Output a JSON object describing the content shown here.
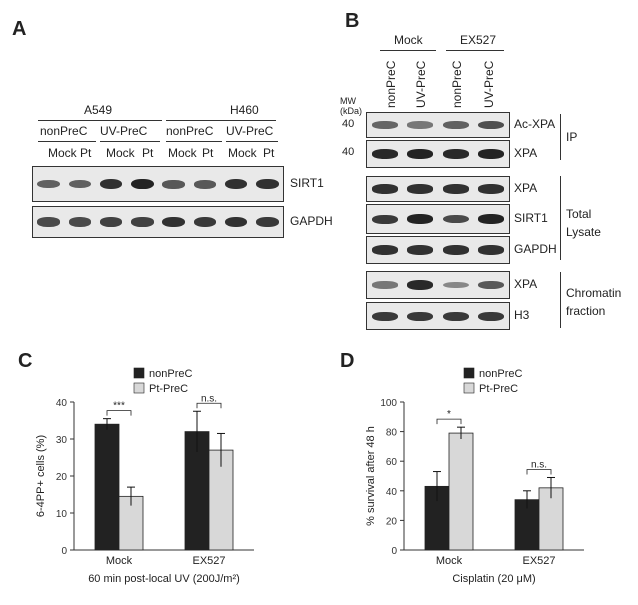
{
  "panelA": {
    "letter": "A",
    "cell_lines": [
      "A549",
      "H460"
    ],
    "groups": [
      "nonPreC",
      "UV-PreC",
      "nonPreC",
      "UV-PreC"
    ],
    "treatments": [
      "Mock",
      "Pt",
      "Mock",
      "Pt",
      "Mock",
      "Pt",
      "Mock",
      "Pt"
    ],
    "rows": [
      {
        "label": "SIRT1",
        "intensity": [
          0.55,
          0.55,
          0.85,
          0.95,
          0.6,
          0.6,
          0.85,
          0.85
        ]
      },
      {
        "label": "GAPDH",
        "intensity": [
          0.7,
          0.7,
          0.75,
          0.75,
          0.85,
          0.8,
          0.85,
          0.8
        ]
      }
    ]
  },
  "panelB": {
    "letter": "B",
    "groups": [
      "Mock",
      "EX527"
    ],
    "lanes": [
      "nonPreC",
      "UV-PreC",
      "nonPreC",
      "UV-PreC"
    ],
    "mw_label": "MW\n(kDa)",
    "mw_marks": [
      "40",
      "40"
    ],
    "rows": [
      {
        "label": "Ac-XPA",
        "intensity": [
          0.5,
          0.4,
          0.55,
          0.65
        ]
      },
      {
        "label": "XPA",
        "intensity": [
          0.9,
          0.95,
          0.9,
          0.95
        ]
      },
      {
        "label": "XPA",
        "intensity": [
          0.85,
          0.85,
          0.85,
          0.85
        ]
      },
      {
        "label": "SIRT1",
        "intensity": [
          0.8,
          0.95,
          0.7,
          0.95
        ]
      },
      {
        "label": "GAPDH",
        "intensity": [
          0.85,
          0.85,
          0.85,
          0.85
        ]
      },
      {
        "label": "XPA",
        "intensity": [
          0.4,
          0.9,
          0.3,
          0.6
        ]
      },
      {
        "label": "H3",
        "intensity": [
          0.8,
          0.8,
          0.8,
          0.8
        ]
      }
    ],
    "brackets": [
      "IP",
      "Total Lysate",
      "Chromatin fraction"
    ]
  },
  "chart_data": [
    {
      "type": "bar",
      "panel": "C",
      "categories": [
        "Mock",
        "EX527"
      ],
      "series": [
        {
          "name": "nonPreC",
          "values": [
            34,
            32
          ],
          "errors": [
            1.5,
            5.5
          ],
          "color": "#222222"
        },
        {
          "name": "Pt-PreC",
          "values": [
            14.5,
            27
          ],
          "errors": [
            2.5,
            4.5
          ],
          "color": "#d8d8d8"
        }
      ],
      "significance": [
        "***",
        "n.s."
      ],
      "ylabel": "6-4PP+ cells (%)",
      "xlabel": "60 min post-local UV (200J/m²)",
      "ylim": [
        0,
        40
      ],
      "yticks": [
        0,
        10,
        20,
        30,
        40
      ],
      "legend": "top"
    },
    {
      "type": "bar",
      "panel": "D",
      "categories": [
        "Mock",
        "EX527"
      ],
      "series": [
        {
          "name": "nonPreC",
          "values": [
            43,
            34
          ],
          "errors": [
            10,
            6
          ],
          "color": "#222222"
        },
        {
          "name": "Pt-PreC",
          "values": [
            79,
            42
          ],
          "errors": [
            4,
            7
          ],
          "color": "#d8d8d8"
        }
      ],
      "significance": [
        "*",
        "n.s."
      ],
      "ylabel": "% survival after 48 h",
      "xlabel": "Cisplatin (20 μM)",
      "ylim": [
        0,
        100
      ],
      "yticks": [
        0,
        20,
        40,
        60,
        80,
        100
      ],
      "legend": "top"
    }
  ]
}
